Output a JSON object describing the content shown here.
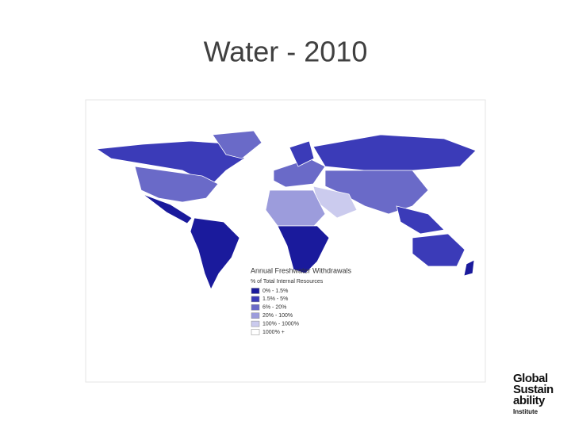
{
  "title": "Water - 2010",
  "map": {
    "legend": {
      "title": "Annual Freshwater Withdrawals",
      "subtitle": "% of Total Internal Resources",
      "items": [
        {
          "label": "0% - 1.5%",
          "color": "#1a1a9c"
        },
        {
          "label": "1.5% - 5%",
          "color": "#3b3bb8"
        },
        {
          "label": "6% - 20%",
          "color": "#6a6ac8"
        },
        {
          "label": "20% - 100%",
          "color": "#9c9cdc"
        },
        {
          "label": "100% - 1000%",
          "color": "#cbcbee"
        },
        {
          "label": "1000% +",
          "color": "#ffffff"
        }
      ]
    }
  },
  "logo": {
    "lines": [
      "Global",
      "Sustain",
      "ability",
      "Institute"
    ]
  }
}
